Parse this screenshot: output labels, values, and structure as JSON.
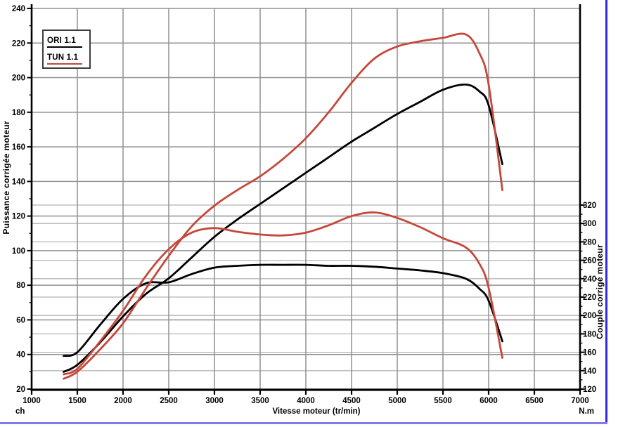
{
  "page": {
    "background": "#ffffff",
    "frame_right_color": "#3425f0",
    "frame_bottom_color": "#837aef"
  },
  "chart_data": {
    "type": "line",
    "title": "",
    "xlabel": "Vitesse moteur (tr/min)",
    "ylabel_left": "Puissance corrigée moteur",
    "ylabel_left_unit": "ch",
    "ylabel_right": "Couple corrigé moteur",
    "ylabel_right_unit": "N.m",
    "xlim": [
      1000,
      7000
    ],
    "ylim_left": [
      20,
      240
    ],
    "ylim_right": [
      120,
      320
    ],
    "x_ticks": [
      1000,
      1500,
      2000,
      2500,
      3000,
      3500,
      4000,
      4500,
      5000,
      5500,
      6000,
      6500,
      7000
    ],
    "left_ticks": [
      20,
      40,
      60,
      80,
      100,
      120,
      140,
      160,
      180,
      200,
      220,
      240
    ],
    "right_ticks": [
      120,
      140,
      160,
      180,
      200,
      220,
      240,
      260,
      280,
      300,
      320
    ],
    "grid": true,
    "colors": {
      "ori": "#000000",
      "tun": "#c5483b",
      "grid_major": "#909090",
      "grid_minor": "#b4b4b4",
      "axis": "#000000"
    },
    "legend": {
      "position": "top-left",
      "items": [
        {
          "label": "ORI 1.1",
          "color": "#000000"
        },
        {
          "label": "TUN 1.1",
          "color": "#c5483b"
        }
      ]
    },
    "x": [
      1350,
      1500,
      1750,
      2000,
      2250,
      2500,
      2750,
      3000,
      3250,
      3500,
      3750,
      4000,
      4250,
      4500,
      4750,
      5000,
      5250,
      5500,
      5750,
      5900,
      6000,
      6150
    ],
    "series": [
      {
        "name": "ORI 1.1 puissance (ch)",
        "axis": "left",
        "color": "#000000",
        "values": [
          30,
          34,
          47,
          62,
          75,
          84,
          96,
          108,
          118,
          127,
          136,
          145,
          154,
          163,
          171,
          179,
          186,
          193,
          196,
          192,
          184,
          150
        ]
      },
      {
        "name": "ORI 1.1 couple (N.m)",
        "axis": "right",
        "color": "#000000",
        "values": [
          156,
          160,
          190,
          218,
          235,
          236,
          245,
          252,
          254,
          255,
          255,
          255,
          254,
          254,
          253,
          251,
          249,
          246,
          240,
          229,
          216,
          172
        ]
      },
      {
        "name": "TUN 1.1 puissance (ch)",
        "axis": "left",
        "color": "#c5483b",
        "values": [
          26,
          30,
          43,
          58,
          78,
          97,
          114,
          126,
          135,
          143,
          153,
          165,
          180,
          197,
          211,
          218,
          221,
          223,
          225,
          214,
          196,
          135
        ]
      },
      {
        "name": "TUN 1.1 couple (N.m)",
        "axis": "right",
        "color": "#c5483b",
        "values": [
          136,
          142,
          172,
          205,
          243,
          272,
          290,
          295,
          291,
          288,
          287,
          290,
          298,
          308,
          312,
          306,
          296,
          284,
          274,
          256,
          230,
          154
        ]
      }
    ]
  }
}
